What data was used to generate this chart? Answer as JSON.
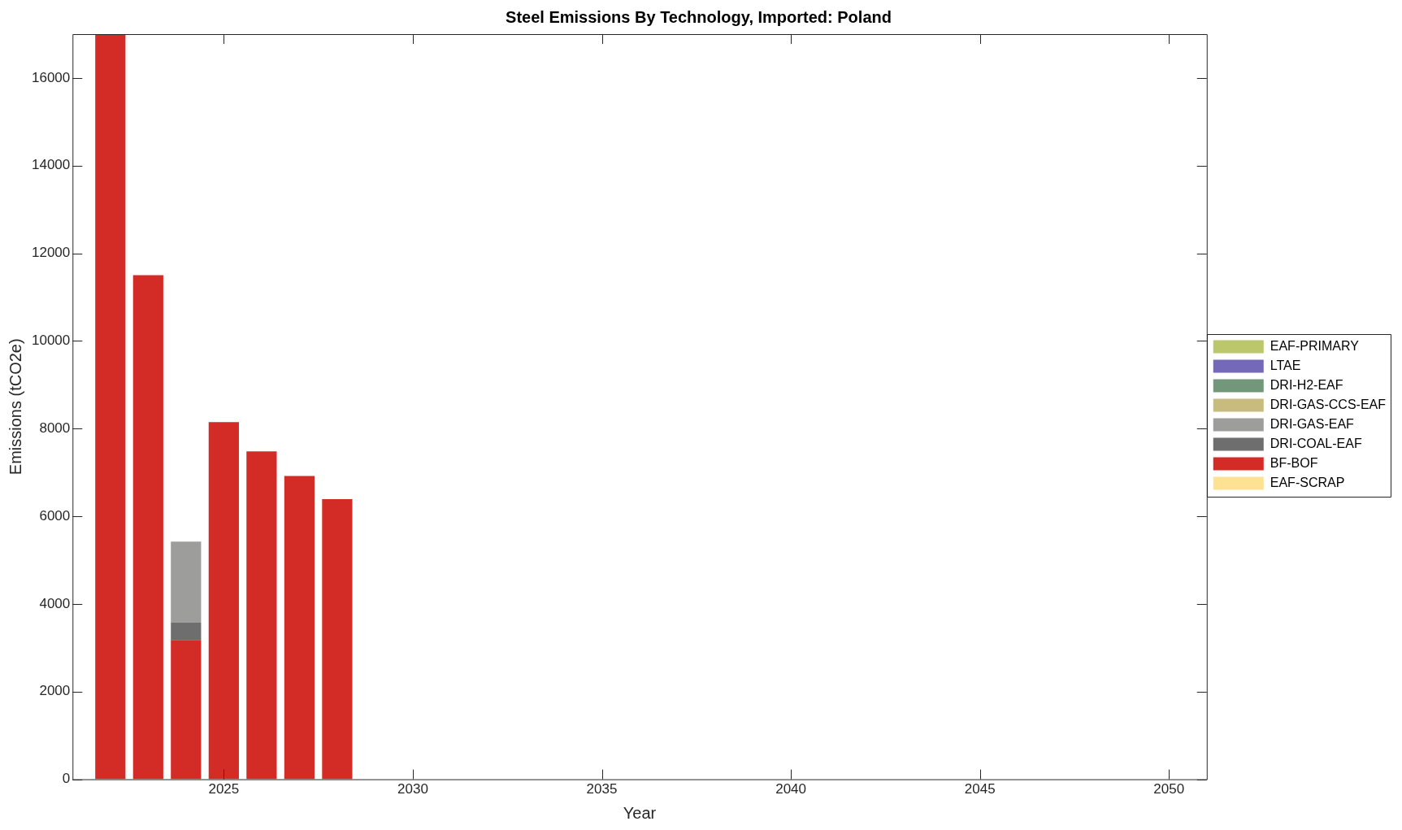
{
  "chart_data": {
    "type": "bar",
    "stacked": true,
    "title": "Steel Emissions By Technology, Imported: Poland",
    "xlabel": "Year",
    "ylabel": "Emissions (tCO2e)",
    "x": [
      2022,
      2023,
      2024,
      2025,
      2026,
      2027,
      2028
    ],
    "series": [
      {
        "name": "EAF-SCRAP",
        "color": "#fde293",
        "values": [
          0,
          0,
          0,
          0,
          0,
          0,
          0
        ]
      },
      {
        "name": "BF-BOF",
        "color": "#d32b25",
        "values": [
          17000,
          11500,
          3180,
          8150,
          7480,
          6920,
          6390
        ]
      },
      {
        "name": "DRI-COAL-EAF",
        "color": "#6e6e6e",
        "values": [
          0,
          0,
          390,
          0,
          0,
          0,
          0
        ]
      },
      {
        "name": "DRI-GAS-EAF",
        "color": "#9d9d9b",
        "values": [
          0,
          0,
          1850,
          0,
          0,
          0,
          0
        ]
      },
      {
        "name": "DRI-GAS-CCS-EAF",
        "color": "#c7bc7e",
        "values": [
          0,
          0,
          0,
          0,
          0,
          0,
          0
        ]
      },
      {
        "name": "DRI-H2-EAF",
        "color": "#72977a",
        "values": [
          0,
          0,
          0,
          0,
          0,
          0,
          0
        ]
      },
      {
        "name": "LTAE",
        "color": "#7468b8",
        "values": [
          0,
          0,
          0,
          0,
          0,
          0,
          0
        ]
      },
      {
        "name": "EAF-PRIMARY",
        "color": "#bcc66a",
        "values": [
          0,
          0,
          0,
          0,
          0,
          0,
          0
        ]
      }
    ],
    "xlim": [
      2021,
      2051
    ],
    "xticks": [
      2025,
      2030,
      2035,
      2040,
      2045,
      2050
    ],
    "ylim": [
      0,
      17000
    ],
    "yticks": [
      0,
      2000,
      4000,
      6000,
      8000,
      10000,
      12000,
      14000,
      16000
    ],
    "grid": false,
    "legend": "right"
  }
}
